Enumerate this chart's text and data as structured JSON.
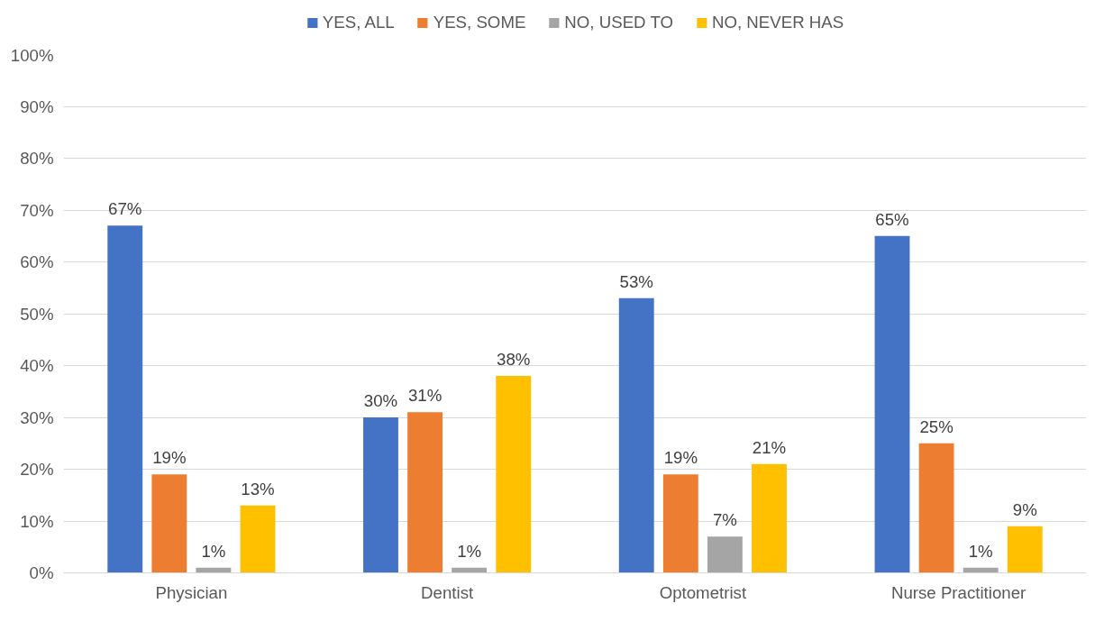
{
  "chart_data": {
    "type": "bar",
    "categories": [
      "Physician",
      "Dentist",
      "Optometrist",
      "Nurse Practitioner"
    ],
    "series": [
      {
        "name": "YES, ALL",
        "color": "#4472c4",
        "values": [
          67,
          30,
          53,
          65
        ],
        "value_labels": [
          "67%",
          "30%",
          "53%",
          "65%"
        ]
      },
      {
        "name": "YES, SOME",
        "color": "#ed7d31",
        "values": [
          19,
          31,
          19,
          25
        ],
        "value_labels": [
          "19%",
          "31%",
          "19%",
          "25%"
        ]
      },
      {
        "name": "NO, USED TO",
        "color": "#a5a5a5",
        "values": [
          1,
          1,
          7,
          1
        ],
        "value_labels": [
          "1%",
          "1%",
          "7%",
          "1%"
        ]
      },
      {
        "name": "NO, NEVER HAS",
        "color": "#ffc000",
        "values": [
          13,
          38,
          21,
          9
        ],
        "value_labels": [
          "13%",
          "38%",
          "21%",
          "9%"
        ]
      }
    ],
    "ylim": [
      0,
      100
    ],
    "yticks": [
      {
        "value": 0,
        "label": "0%"
      },
      {
        "value": 10,
        "label": "10%"
      },
      {
        "value": 20,
        "label": "20%"
      },
      {
        "value": 30,
        "label": "30%"
      },
      {
        "value": 40,
        "label": "40%"
      },
      {
        "value": 50,
        "label": "50%"
      },
      {
        "value": 60,
        "label": "60%"
      },
      {
        "value": 70,
        "label": "70%"
      },
      {
        "value": 80,
        "label": "80%"
      },
      {
        "value": 90,
        "label": "90%"
      },
      {
        "value": 100,
        "label": "100%"
      }
    ],
    "grid": "y",
    "legend": "top"
  }
}
